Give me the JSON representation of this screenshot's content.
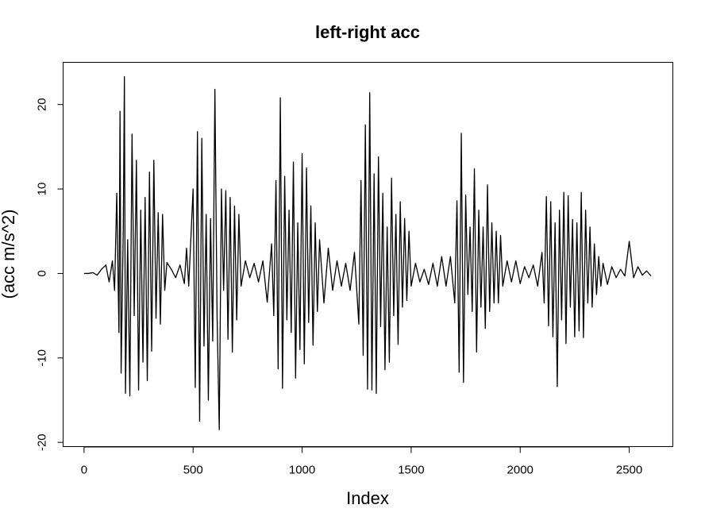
{
  "chart_data": {
    "type": "line",
    "title": "left-right acc",
    "xlabel": "Index",
    "ylabel": "(acc m/s^2)",
    "xlim": [
      -96,
      2700
    ],
    "ylim": [
      -20.5,
      25
    ],
    "xticks": [
      0,
      500,
      1000,
      1500,
      2000,
      2500
    ],
    "yticks": [
      -20,
      -10,
      0,
      10,
      20
    ],
    "grid": false,
    "legend": "none",
    "color": "#000000",
    "series": [
      {
        "x": [
          0,
          20,
          40,
          60,
          80,
          100,
          115,
          130,
          140,
          150,
          160,
          165,
          170,
          180,
          185,
          190,
          200,
          210,
          220,
          230,
          240,
          250,
          260,
          270,
          280,
          290,
          300,
          310,
          320,
          330,
          340,
          350,
          360,
          370,
          380,
          400,
          420,
          440,
          460,
          470,
          480,
          500,
          510,
          520,
          530,
          540,
          550,
          560,
          570,
          580,
          590,
          600,
          610,
          620,
          630,
          640,
          650,
          660,
          670,
          680,
          690,
          700,
          710,
          720,
          740,
          760,
          780,
          800,
          820,
          840,
          860,
          870,
          880,
          890,
          900,
          910,
          920,
          930,
          940,
          950,
          960,
          970,
          980,
          990,
          1000,
          1010,
          1020,
          1030,
          1040,
          1050,
          1060,
          1070,
          1080,
          1100,
          1120,
          1140,
          1160,
          1180,
          1200,
          1220,
          1240,
          1260,
          1270,
          1280,
          1290,
          1300,
          1310,
          1320,
          1330,
          1340,
          1350,
          1360,
          1370,
          1380,
          1390,
          1400,
          1410,
          1420,
          1430,
          1440,
          1450,
          1460,
          1470,
          1480,
          1490,
          1500,
          1520,
          1540,
          1560,
          1580,
          1600,
          1620,
          1640,
          1660,
          1680,
          1700,
          1710,
          1720,
          1730,
          1740,
          1750,
          1760,
          1770,
          1780,
          1790,
          1800,
          1810,
          1820,
          1830,
          1840,
          1850,
          1860,
          1870,
          1880,
          1890,
          1900,
          1910,
          1920,
          1940,
          1960,
          1980,
          2000,
          2020,
          2040,
          2060,
          2080,
          2100,
          2110,
          2120,
          2130,
          2140,
          2150,
          2160,
          2170,
          2180,
          2190,
          2200,
          2210,
          2220,
          2230,
          2240,
          2250,
          2260,
          2270,
          2280,
          2290,
          2300,
          2310,
          2320,
          2330,
          2340,
          2350,
          2360,
          2370,
          2380,
          2400,
          2420,
          2440,
          2460,
          2480,
          2500,
          2520,
          2540,
          2560,
          2580,
          2600
        ],
        "y": [
          0,
          0,
          0.1,
          -0.2,
          0.5,
          1,
          -1,
          1.5,
          -2,
          9.5,
          -7,
          19.2,
          -11.8,
          5.5,
          23.3,
          -14.2,
          4,
          -14.5,
          16.5,
          -5,
          13.4,
          -13.8,
          7.5,
          -10.5,
          9,
          -12.7,
          12,
          -9.2,
          13.4,
          -5.3,
          7.2,
          -6,
          7,
          -2,
          1.3,
          0.5,
          -0.5,
          1,
          -1.2,
          3,
          -1.5,
          10,
          -13.5,
          16.8,
          -17.5,
          16,
          -8.6,
          7,
          -15,
          6.5,
          -8,
          21.8,
          -5,
          -18.5,
          10,
          -2,
          9.8,
          -7.8,
          9,
          -9.3,
          8,
          -5.5,
          7,
          -1.5,
          1.5,
          -0.5,
          1.2,
          -1,
          1.5,
          -3.4,
          3.5,
          -5,
          11,
          -11.3,
          20.8,
          -13.6,
          11.5,
          -5.5,
          7.5,
          -7,
          13.2,
          -12.4,
          6,
          -9,
          14.2,
          -10.7,
          12.5,
          -5.8,
          8,
          -8.5,
          6,
          -4.5,
          4,
          -3.5,
          3,
          -2,
          1.5,
          -1.5,
          1.2,
          -2,
          2.5,
          -6,
          11,
          -9.7,
          17.6,
          -13.7,
          21.4,
          -13.8,
          11.8,
          -14.2,
          13.8,
          -6.3,
          9.5,
          -11.4,
          5.5,
          -10.5,
          11.3,
          -5,
          7,
          -8.4,
          8.5,
          -4,
          6.5,
          -3.2,
          5,
          -1.5,
          1.2,
          -1,
          0.5,
          -1.3,
          1.2,
          -1.5,
          2,
          -1.5,
          2,
          -3.5,
          8.6,
          -11.7,
          16.6,
          -12.9,
          9.3,
          -2.5,
          5.5,
          -4.5,
          12.4,
          -9.3,
          7.5,
          -4,
          5.5,
          -6.5,
          10.5,
          -4.5,
          6,
          -3.5,
          5,
          -3.5,
          4.5,
          -1.5,
          1.5,
          -1,
          1.5,
          -1.2,
          0.8,
          -0.5,
          1,
          -1.5,
          2.5,
          -3.5,
          9.1,
          -6.2,
          8.5,
          -7.5,
          6,
          -13.4,
          7.5,
          -5.5,
          9.6,
          -8.3,
          9.2,
          -4,
          6.4,
          -7.5,
          6,
          -6.8,
          9.6,
          -7.6,
          7.5,
          -3.5,
          5.5,
          -4,
          3.5,
          -2.5,
          2,
          -1.5,
          1.2,
          -1.3,
          0.8,
          -0.5,
          0.5,
          -0.3,
          3.8,
          -0.5,
          0.8,
          -0.2,
          0.3,
          -0.3
        ]
      }
    ]
  }
}
